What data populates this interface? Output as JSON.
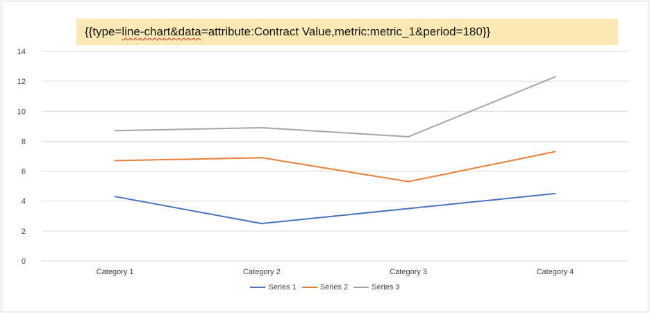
{
  "banner": {
    "prefix": "{{type=",
    "marked": "line-chart&data",
    "suffix": "=attribute:Contract Value,metric:metric_1&period=180}}"
  },
  "chart_data": {
    "type": "line",
    "categories": [
      "Category 1",
      "Category 2",
      "Category 3",
      "Category 4"
    ],
    "series": [
      {
        "name": "Series 1",
        "color": "#4472c4",
        "values": [
          4.3,
          2.5,
          3.5,
          4.5
        ]
      },
      {
        "name": "Series 2",
        "color": "#ed7d31",
        "values": [
          6.7,
          6.9,
          5.3,
          7.3
        ]
      },
      {
        "name": "Series 3",
        "color": "#a5a5a5",
        "values": [
          8.7,
          8.9,
          8.3,
          12.3
        ]
      }
    ],
    "ylim": [
      0,
      14
    ],
    "yticks": [
      0,
      2,
      4,
      6,
      8,
      10,
      12,
      14
    ],
    "grid": true,
    "legend": "bottom"
  }
}
